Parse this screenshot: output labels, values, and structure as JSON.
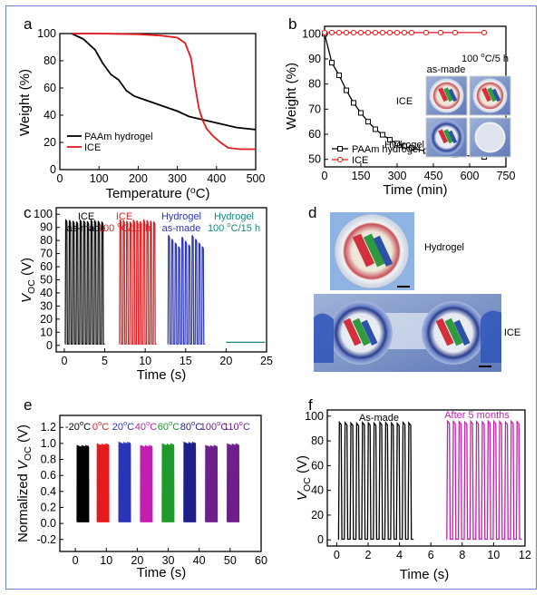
{
  "colors": {
    "black": "#000000",
    "red": "#e41a1c",
    "blue": "#2a34b8",
    "teal": "#17877b",
    "magenta": "#c21fb0",
    "green": "#1d9a2a",
    "navy": "#1f1f8c",
    "purple": "#6d2089",
    "frame": "#6b7fd6"
  },
  "chart_data": [
    {
      "panel": "a",
      "type": "line",
      "xlabel": "Temperature (oC)",
      "ylabel": "Weight (%)",
      "xlim": [
        0,
        500
      ],
      "ylim": [
        0,
        100
      ],
      "xticks": [
        0,
        100,
        200,
        300,
        400,
        500
      ],
      "yticks": [
        0,
        20,
        40,
        60,
        80,
        100
      ],
      "legend": {
        "position": "bottom-left"
      },
      "series": [
        {
          "name": "PAAm hydrogel",
          "color": "#000000",
          "x": [
            30,
            60,
            90,
            110,
            130,
            150,
            170,
            190,
            210,
            240,
            270,
            300,
            330,
            360,
            390,
            420,
            450,
            480,
            500
          ],
          "y": [
            100,
            96,
            88,
            78,
            70,
            66,
            58,
            54,
            52,
            49,
            46,
            43,
            39,
            37,
            35,
            33,
            31,
            30,
            29.5
          ]
        },
        {
          "name": "ICE",
          "color": "#e41a1c",
          "x": [
            30,
            100,
            200,
            260,
            300,
            320,
            335,
            345,
            355,
            365,
            375,
            390,
            410,
            430,
            460,
            500
          ],
          "y": [
            100,
            100,
            99.5,
            98.5,
            97,
            93,
            82,
            62,
            45,
            36,
            30,
            25,
            20,
            16,
            15,
            15
          ]
        }
      ]
    },
    {
      "panel": "b",
      "type": "line",
      "xlabel": "Time (min)",
      "ylabel": "Weight (%)",
      "xlim": [
        0,
        750
      ],
      "ylim": [
        47,
        103
      ],
      "xticks": [
        0,
        150,
        300,
        450,
        600,
        750
      ],
      "yticks": [
        50,
        60,
        70,
        80,
        90,
        100
      ],
      "legend": {
        "position": "bottom-left"
      },
      "series": [
        {
          "name": "PAAm hydrogel",
          "color": "#000000",
          "marker": "square",
          "x": [
            0,
            30,
            60,
            90,
            120,
            150,
            180,
            210,
            240,
            270,
            300,
            330,
            360,
            420,
            480,
            540,
            660
          ],
          "y": [
            100,
            88.5,
            83.5,
            77.5,
            72.5,
            68.5,
            65,
            62,
            59.8,
            57.8,
            56.3,
            55.2,
            54.5,
            53.3,
            52.5,
            51.8,
            51
          ]
        },
        {
          "name": "ICE",
          "color": "#e41a1c",
          "marker": "circle",
          "x": [
            0,
            30,
            60,
            90,
            120,
            150,
            180,
            210,
            240,
            270,
            300,
            330,
            360,
            420,
            480,
            540,
            660
          ],
          "y": [
            100.5,
            100.5,
            100.5,
            100.5,
            100.5,
            100.5,
            100.5,
            100.5,
            100.5,
            100.5,
            100.5,
            100.5,
            100.5,
            100.5,
            100.5,
            100.5,
            100.5
          ]
        }
      ],
      "inset": {
        "col_labels": [
          "as-made",
          "100 oC/5 h"
        ],
        "row_labels": [
          "ICE",
          "Hydrogel"
        ]
      }
    },
    {
      "panel": "c",
      "type": "line",
      "xlabel": "Time (s)",
      "ylabel": "VOC (V)",
      "xlim": [
        -1,
        25
      ],
      "ylim": [
        -5,
        105
      ],
      "xticks": [
        0,
        5,
        10,
        15,
        20,
        25
      ],
      "yticks": [
        0,
        10,
        20,
        30,
        40,
        50,
        60,
        70,
        80,
        90,
        100
      ],
      "groups": [
        {
          "label": "ICE",
          "label2": "as-made",
          "color": "#000000",
          "t_start": 0.1,
          "t_end": 5.0,
          "peak": 96
        },
        {
          "label": "ICE",
          "label2": "100 oC/15 h",
          "color": "#e41a1c",
          "t_start": 6.8,
          "t_end": 11.4,
          "peak": 96
        },
        {
          "label": "Hydrogel",
          "label2": "as-made",
          "color": "#2a34b8",
          "t_start": 12.8,
          "t_end": 17.4,
          "peak": 84
        },
        {
          "label": "Hydrogel",
          "label2": "100 oC/15 h",
          "color": "#17877b",
          "t_start": 20.0,
          "t_end": 24.8,
          "peak": 2.5
        }
      ]
    },
    {
      "panel": "e",
      "type": "line",
      "xlabel": "Time (s)",
      "ylabel": "Normalized VOC (V)",
      "xlim": [
        -5,
        60
      ],
      "ylim": [
        -0.35,
        1.35
      ],
      "xticks": [
        0,
        10,
        20,
        30,
        40,
        50,
        60
      ],
      "yticks": [
        -0.2,
        0.0,
        0.2,
        0.4,
        0.6,
        0.8,
        1.0,
        1.2
      ],
      "groups": [
        {
          "label": "-20oC",
          "color": "#000000",
          "t_start": 0.5,
          "t_end": 4.5
        },
        {
          "label": "0oC",
          "color": "#e41a1c",
          "t_start": 7.0,
          "t_end": 11.0
        },
        {
          "label": "20oC",
          "color": "#2a34b8",
          "t_start": 14.0,
          "t_end": 18.0
        },
        {
          "label": "40oC",
          "color": "#c21fb0",
          "t_start": 21.0,
          "t_end": 25.0
        },
        {
          "label": "60oC",
          "color": "#1d9a2a",
          "t_start": 28.0,
          "t_end": 32.0
        },
        {
          "label": "80oC",
          "color": "#1f1f8c",
          "t_start": 35.0,
          "t_end": 39.0
        },
        {
          "label": "100oC",
          "color": "#6d2089",
          "t_start": 42.0,
          "t_end": 46.0
        },
        {
          "label": "110oC",
          "color": "#6d2089",
          "t_start": 49.0,
          "t_end": 53.0
        }
      ]
    },
    {
      "panel": "f",
      "type": "line",
      "xlabel": "Time (s)",
      "ylabel": "VOC (V)",
      "xlim": [
        -0.6,
        12
      ],
      "ylim": [
        -5,
        105
      ],
      "xticks": [
        0,
        2,
        4,
        6,
        8,
        10,
        12
      ],
      "yticks": [
        0,
        20,
        40,
        60,
        80,
        100
      ],
      "groups": [
        {
          "label": "As-made",
          "color": "#000000",
          "t_start": 0.1,
          "t_end": 4.9,
          "peak": 95
        },
        {
          "label": "After 5 months",
          "color": "#c21fb0",
          "t_start": 7.0,
          "t_end": 11.8,
          "peak": 96
        }
      ]
    }
  ],
  "panel_d": {
    "label": "d",
    "top_caption": "Hydrogel",
    "bottom_caption": "ICE"
  },
  "panel_labels": [
    "a",
    "b",
    "c",
    "d",
    "e",
    "f"
  ]
}
